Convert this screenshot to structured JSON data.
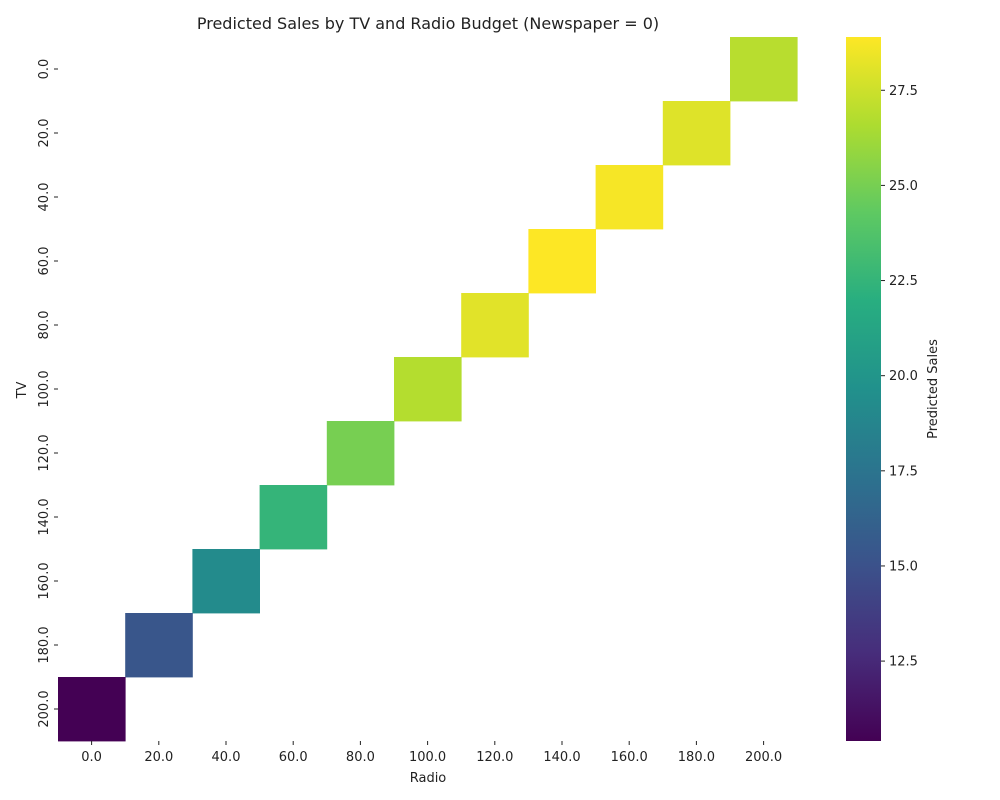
{
  "chart_data": {
    "type": "heatmap",
    "title": "Predicted Sales by TV and Radio Budget (Newspaper = 0)",
    "xlabel": "Radio",
    "ylabel": "TV",
    "x_categories": [
      "0.0",
      "20.0",
      "40.0",
      "60.0",
      "80.0",
      "100.0",
      "120.0",
      "140.0",
      "160.0",
      "180.0",
      "200.0"
    ],
    "y_categories": [
      "0.0",
      "20.0",
      "40.0",
      "60.0",
      "80.0",
      "100.0",
      "120.0",
      "140.0",
      "160.0",
      "180.0",
      "200.0"
    ],
    "cells": [
      {
        "tv": "0.0",
        "radio": "200.0",
        "value": 26.9
      },
      {
        "tv": "20.0",
        "radio": "180.0",
        "value": 28.0
      },
      {
        "tv": "40.0",
        "radio": "160.0",
        "value": 28.7
      },
      {
        "tv": "60.0",
        "radio": "140.0",
        "value": 28.9
      },
      {
        "tv": "80.0",
        "radio": "120.0",
        "value": 28.1
      },
      {
        "tv": "100.0",
        "radio": "100.0",
        "value": 26.8
      },
      {
        "tv": "120.0",
        "radio": "80.0",
        "value": 25.0
      },
      {
        "tv": "140.0",
        "radio": "60.0",
        "value": 22.5
      },
      {
        "tv": "160.0",
        "radio": "40.0",
        "value": 19.2
      },
      {
        "tv": "180.0",
        "radio": "20.0",
        "value": 15.3
      },
      {
        "tv": "200.0",
        "radio": "0.0",
        "value": 10.4
      }
    ],
    "colorbar": {
      "label": "Predicted Sales",
      "colormap": "viridis",
      "vmin": 10.4,
      "vmax": 28.9,
      "ticks": [
        12.5,
        15.0,
        17.5,
        20.0,
        22.5,
        25.0,
        27.5
      ],
      "tick_labels": [
        "12.5",
        "15.0",
        "17.5",
        "20.0",
        "22.5",
        "25.0",
        "27.5"
      ]
    },
    "missing_cells": "blank (white)"
  }
}
